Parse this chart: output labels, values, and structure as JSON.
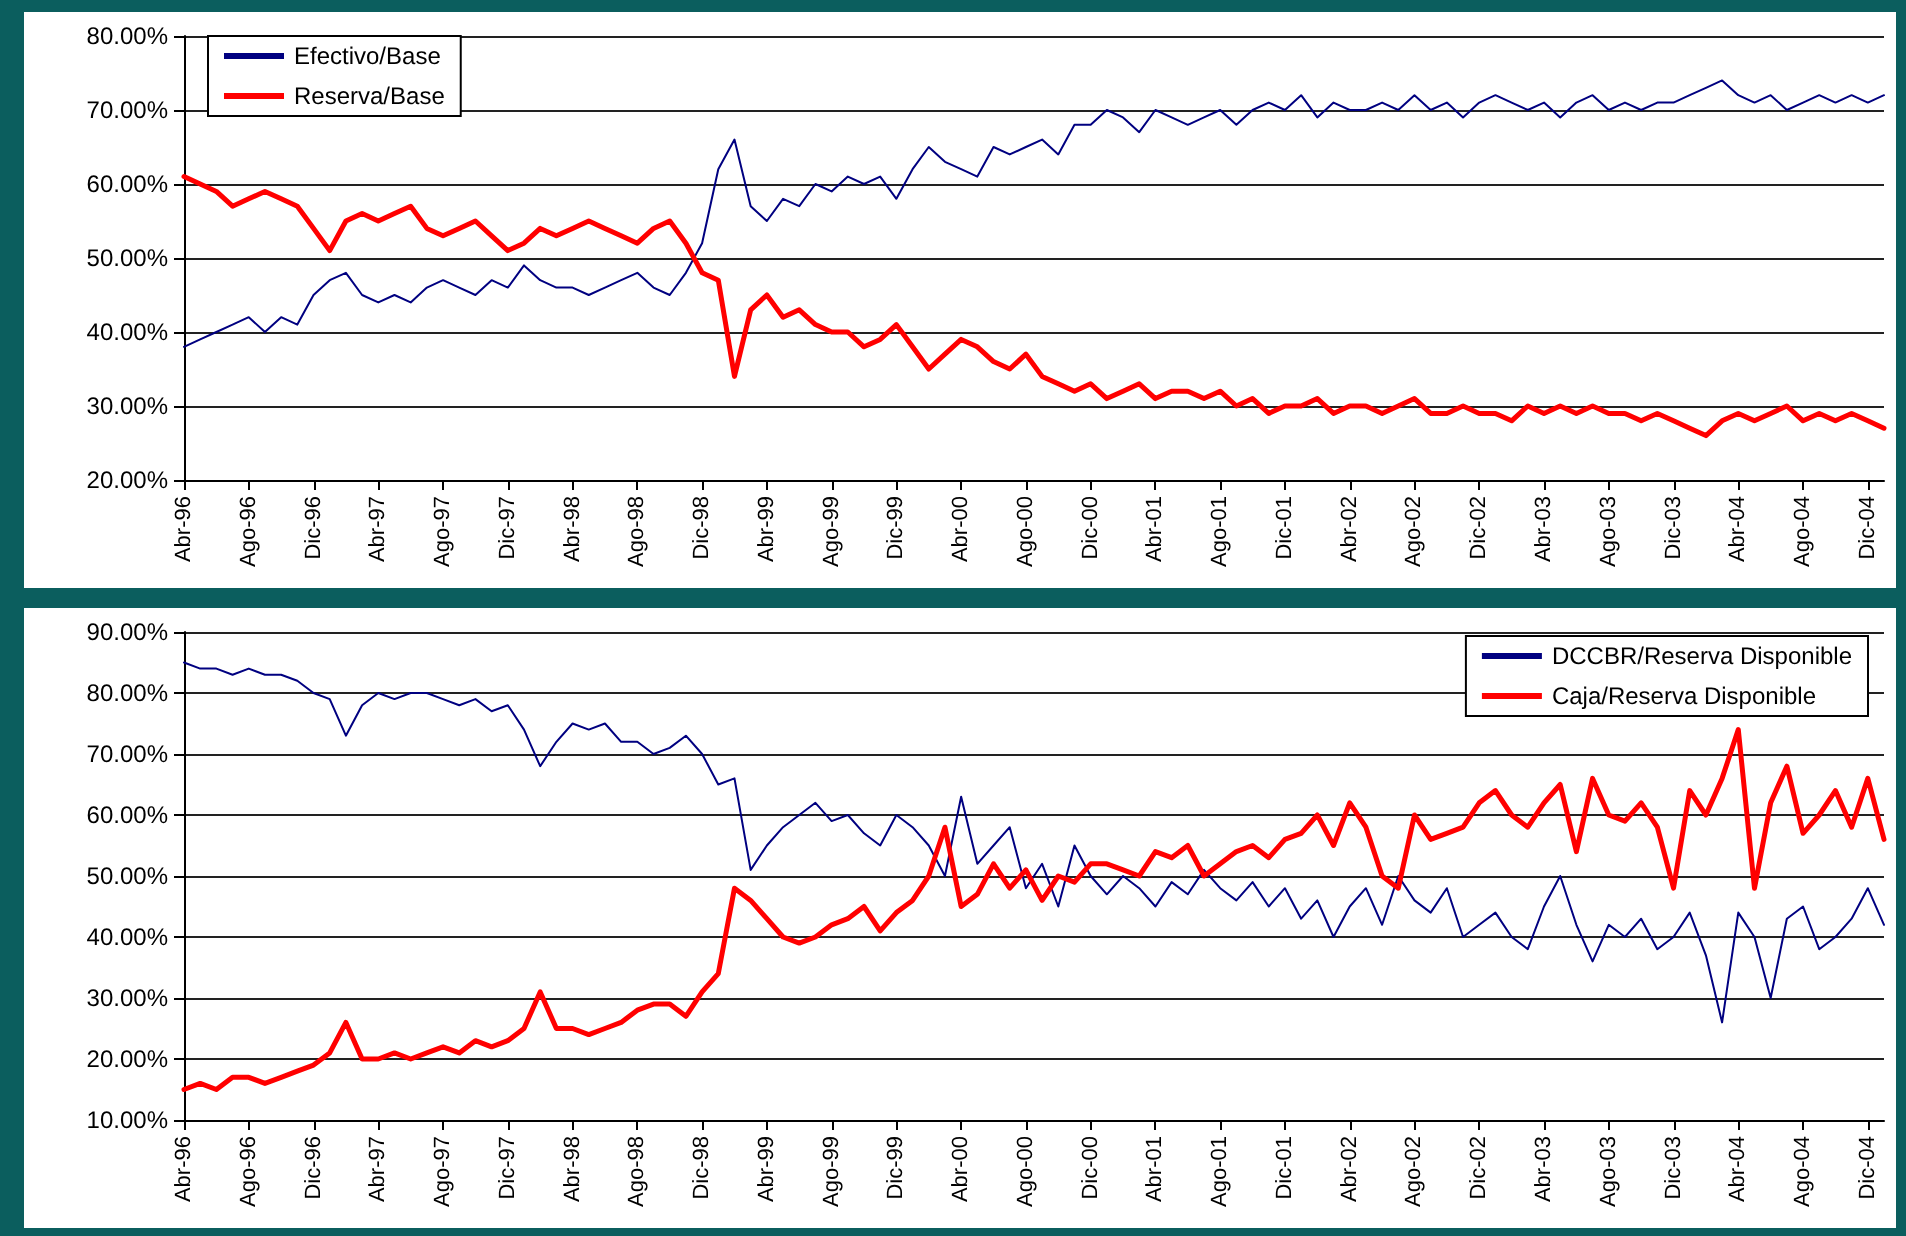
{
  "chart_data": [
    {
      "type": "line",
      "categories": [
        "Abr-96",
        null,
        null,
        null,
        "Ago-96",
        null,
        null,
        null,
        "Dic-96",
        null,
        null,
        null,
        "Abr-97",
        null,
        null,
        null,
        "Ago-97",
        null,
        null,
        null,
        "Dic-97",
        null,
        null,
        null,
        "Abr-98",
        null,
        null,
        null,
        "Ago-98",
        null,
        null,
        null,
        "Dic-98",
        null,
        null,
        null,
        "Abr-99",
        null,
        null,
        null,
        "Ago-99",
        null,
        null,
        null,
        "Dic-99",
        null,
        null,
        null,
        "Abr-00",
        null,
        null,
        null,
        "Ago-00",
        null,
        null,
        null,
        "Dic-00",
        null,
        null,
        null,
        "Abr-01",
        null,
        null,
        null,
        "Ago-01",
        null,
        null,
        null,
        "Dic-01",
        null,
        null,
        null,
        "Abr-02",
        null,
        null,
        null,
        "Ago-02",
        null,
        null,
        null,
        "Dic-02",
        null,
        null,
        null,
        "Abr-03",
        null,
        null,
        null,
        "Ago-03",
        null,
        null,
        null,
        "Dic-03",
        null,
        null,
        null,
        "Abr-04",
        null,
        null,
        null,
        "Ago-04",
        null,
        null,
        null,
        "Dic-04",
        null
      ],
      "series": [
        {
          "name": "Efectivo/Base",
          "color": "#000080",
          "values": [
            38,
            39,
            40,
            41,
            42,
            40,
            42,
            41,
            45,
            47,
            48,
            45,
            44,
            45,
            44,
            46,
            47,
            46,
            45,
            47,
            46,
            49,
            47,
            46,
            46,
            45,
            46,
            47,
            48,
            46,
            45,
            48,
            52,
            62,
            66,
            57,
            55,
            58,
            57,
            60,
            59,
            61,
            60,
            61,
            58,
            62,
            65,
            63,
            62,
            61,
            65,
            64,
            65,
            66,
            64,
            68,
            68,
            70,
            69,
            67,
            70,
            69,
            68,
            69,
            70,
            68,
            70,
            71,
            70,
            72,
            69,
            71,
            70,
            70,
            71,
            70,
            72,
            70,
            71,
            69,
            71,
            72,
            71,
            70,
            71,
            69,
            71,
            72,
            70,
            71,
            70,
            71,
            71,
            72,
            73,
            74,
            72,
            71,
            72,
            70,
            71,
            72,
            71,
            72,
            71,
            72
          ]
        },
        {
          "name": "Reserva/Base",
          "color": "#ff0000",
          "values": [
            61,
            60,
            59,
            57,
            58,
            59,
            58,
            57,
            54,
            51,
            55,
            56,
            55,
            56,
            57,
            54,
            53,
            54,
            55,
            53,
            51,
            52,
            54,
            53,
            54,
            55,
            54,
            53,
            52,
            54,
            55,
            52,
            48,
            47,
            34,
            43,
            45,
            42,
            43,
            41,
            40,
            40,
            38,
            39,
            41,
            38,
            35,
            37,
            39,
            38,
            36,
            35,
            37,
            34,
            33,
            32,
            33,
            31,
            32,
            33,
            31,
            32,
            32,
            31,
            32,
            30,
            31,
            29,
            30,
            30,
            31,
            29,
            30,
            30,
            29,
            30,
            31,
            29,
            29,
            30,
            29,
            29,
            28,
            30,
            29,
            30,
            29,
            30,
            29,
            29,
            28,
            29,
            28,
            27,
            26,
            28,
            29,
            28,
            29,
            30,
            28,
            29,
            28,
            29,
            28,
            27
          ]
        }
      ],
      "ylim": [
        20,
        80
      ],
      "yticks": [
        {
          "value": 20,
          "label": "20.00%"
        },
        {
          "value": 30,
          "label": "30.00%"
        },
        {
          "value": 40,
          "label": "40.00%"
        },
        {
          "value": 50,
          "label": "50.00%"
        },
        {
          "value": 60,
          "label": "60.00%"
        },
        {
          "value": 70,
          "label": "70.00%"
        },
        {
          "value": 80,
          "label": "80.00%"
        }
      ],
      "grid": "y",
      "legend": "top left",
      "marker": "none",
      "line_style": "solid"
    },
    {
      "type": "line",
      "categories": [
        "Abr-96",
        null,
        null,
        null,
        "Ago-96",
        null,
        null,
        null,
        "Dic-96",
        null,
        null,
        null,
        "Abr-97",
        null,
        null,
        null,
        "Ago-97",
        null,
        null,
        null,
        "Dic-97",
        null,
        null,
        null,
        "Abr-98",
        null,
        null,
        null,
        "Ago-98",
        null,
        null,
        null,
        "Dic-98",
        null,
        null,
        null,
        "Abr-99",
        null,
        null,
        null,
        "Ago-99",
        null,
        null,
        null,
        "Dic-99",
        null,
        null,
        null,
        "Abr-00",
        null,
        null,
        null,
        "Ago-00",
        null,
        null,
        null,
        "Dic-00",
        null,
        null,
        null,
        "Abr-01",
        null,
        null,
        null,
        "Ago-01",
        null,
        null,
        null,
        "Dic-01",
        null,
        null,
        null,
        "Abr-02",
        null,
        null,
        null,
        "Ago-02",
        null,
        null,
        null,
        "Dic-02",
        null,
        null,
        null,
        "Abr-03",
        null,
        null,
        null,
        "Ago-03",
        null,
        null,
        null,
        "Dic-03",
        null,
        null,
        null,
        "Abr-04",
        null,
        null,
        null,
        "Ago-04",
        null,
        null,
        null,
        "Dic-04",
        null
      ],
      "series": [
        {
          "name": "DCCBR/Reserva Disponible",
          "color": "#000080",
          "values": [
            85,
            84,
            84,
            83,
            84,
            83,
            83,
            82,
            80,
            79,
            73,
            78,
            80,
            79,
            80,
            80,
            79,
            78,
            79,
            77,
            78,
            74,
            68,
            72,
            75,
            74,
            75,
            72,
            72,
            70,
            71,
            73,
            70,
            65,
            66,
            51,
            55,
            58,
            60,
            62,
            59,
            60,
            57,
            55,
            60,
            58,
            55,
            50,
            63,
            52,
            55,
            58,
            48,
            52,
            45,
            55,
            50,
            47,
            50,
            48,
            45,
            49,
            47,
            51,
            48,
            46,
            49,
            45,
            48,
            43,
            46,
            40,
            45,
            48,
            42,
            50,
            46,
            44,
            48,
            40,
            42,
            44,
            40,
            38,
            45,
            50,
            42,
            36,
            42,
            40,
            43,
            38,
            40,
            44,
            37,
            26,
            44,
            40,
            30,
            43,
            45,
            38,
            40,
            43,
            48,
            42
          ]
        },
        {
          "name": "Caja/Reserva Disponible",
          "color": "#ff0000",
          "values": [
            15,
            16,
            15,
            17,
            17,
            16,
            17,
            18,
            19,
            21,
            26,
            20,
            20,
            21,
            20,
            21,
            22,
            21,
            23,
            22,
            23,
            25,
            31,
            25,
            25,
            24,
            25,
            26,
            28,
            29,
            29,
            27,
            31,
            34,
            48,
            46,
            43,
            40,
            39,
            40,
            42,
            43,
            45,
            41,
            44,
            46,
            50,
            58,
            45,
            47,
            52,
            48,
            51,
            46,
            50,
            49,
            52,
            52,
            51,
            50,
            54,
            53,
            55,
            50,
            52,
            54,
            55,
            53,
            56,
            57,
            60,
            55,
            62,
            58,
            50,
            48,
            60,
            56,
            57,
            58,
            62,
            64,
            60,
            58,
            62,
            65,
            54,
            66,
            60,
            59,
            62,
            58,
            48,
            64,
            60,
            66,
            74,
            48,
            62,
            68,
            57,
            60,
            64,
            58,
            66,
            56
          ]
        }
      ],
      "ylim": [
        10,
        90
      ],
      "yticks": [
        {
          "value": 10,
          "label": "10.00%"
        },
        {
          "value": 20,
          "label": "20.00%"
        },
        {
          "value": 30,
          "label": "30.00%"
        },
        {
          "value": 40,
          "label": "40.00%"
        },
        {
          "value": 50,
          "label": "50.00%"
        },
        {
          "value": 60,
          "label": "60.00%"
        },
        {
          "value": 70,
          "label": "70.00%"
        },
        {
          "value": 80,
          "label": "80.00%"
        },
        {
          "value": 90,
          "label": "90.00%"
        }
      ],
      "grid": "y",
      "legend": "top right",
      "marker": "none",
      "line_style": "solid"
    }
  ]
}
